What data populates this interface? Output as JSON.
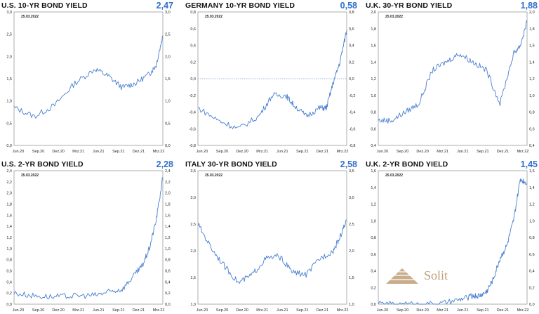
{
  "chart_data": [
    {
      "type": "line",
      "title": "U.S. 10-YR BOND YIELD",
      "last_value": "2,47",
      "date_label": "25.03.2022",
      "ylim": [
        0,
        3
      ],
      "yticks": [
        "0,0",
        "0,5",
        "1,0",
        "1,5",
        "2,0",
        "2,5",
        "3,0"
      ],
      "xticks": [
        "Jun.20",
        "Sep.20",
        "Dez.20",
        "Mrz.21",
        "Jun.21",
        "Sep.21",
        "Dez.21",
        "Mrz.22"
      ],
      "line_color": "#4a7fd0",
      "zero_line": false,
      "series": [
        {
          "x": [
            0,
            3,
            6,
            9,
            12,
            14,
            16,
            18,
            20,
            21,
            22
          ],
          "y": [
            0.85,
            0.65,
            0.9,
            1.4,
            1.72,
            1.55,
            1.3,
            1.4,
            1.6,
            1.8,
            2.47
          ]
        }
      ]
    },
    {
      "type": "line",
      "title": "GERMANY 10-YR BOND YIELD",
      "last_value": "0,58",
      "date_label": "25.03.2022",
      "ylim": [
        -0.8,
        0.8
      ],
      "yticks": [
        "-0,8",
        "-0,6",
        "-0,4",
        "-0,2",
        "0,0",
        "0,2",
        "0,4",
        "0,6",
        "0,8"
      ],
      "xticks": [
        "Jun.20",
        "Sep.20",
        "Dez.20",
        "Mrz.21",
        "Jun.21",
        "Sep.21",
        "Dez.21",
        "Mrz.22"
      ],
      "line_color": "#4a7fd0",
      "zero_line": true,
      "series": [
        {
          "x": [
            0,
            3,
            6,
            9,
            11,
            13,
            14,
            16,
            18,
            19,
            20,
            21,
            22
          ],
          "y": [
            -0.35,
            -0.5,
            -0.6,
            -0.45,
            -0.2,
            -0.2,
            -0.3,
            -0.45,
            -0.35,
            -0.35,
            -0.05,
            0.2,
            0.58
          ]
        }
      ]
    },
    {
      "type": "line",
      "title": "U.K. 30-YR BOND YIELD",
      "last_value": "1,88",
      "date_label": "25.03.2022",
      "ylim": [
        0.4,
        2.0
      ],
      "yticks": [
        "0,4",
        "0,6",
        "0,8",
        "1,0",
        "1,2",
        "1,4",
        "1,6",
        "1,8",
        "2,0"
      ],
      "xticks": [
        "Jun.20",
        "Sep.20",
        "Dez.20",
        "Mrz.21",
        "Jun.21",
        "Sep.21",
        "Dez.21",
        "Mrz.22"
      ],
      "line_color": "#4a7fd0",
      "zero_line": false,
      "series": [
        {
          "x": [
            0,
            2,
            4,
            6,
            8,
            10,
            12,
            14,
            16,
            18,
            20,
            21,
            22
          ],
          "y": [
            0.7,
            0.7,
            0.8,
            0.9,
            1.3,
            1.4,
            1.5,
            1.4,
            1.3,
            0.9,
            1.5,
            1.6,
            1.88
          ]
        }
      ]
    },
    {
      "type": "line",
      "title": "U.S. 2-YR BOND YIELD",
      "last_value": "2,28",
      "date_label": "25.03.2022",
      "ylim": [
        0,
        2.4
      ],
      "yticks": [
        "0,0",
        "0,2",
        "0,4",
        "0,6",
        "0,8",
        "1,0",
        "1,2",
        "1,4",
        "1,6",
        "1,8",
        "2,0",
        "2,2",
        "2,4"
      ],
      "xticks": [
        "Jun.20",
        "Sep.20",
        "Dez.20",
        "Mrz.21",
        "Jun.21",
        "Sep.21",
        "Dez.21",
        "Mrz.22"
      ],
      "line_color": "#4a7fd0",
      "zero_line": false,
      "series": [
        {
          "x": [
            0,
            3,
            6,
            9,
            12,
            14,
            16,
            18,
            19,
            20,
            21,
            22
          ],
          "y": [
            0.2,
            0.15,
            0.13,
            0.15,
            0.16,
            0.22,
            0.27,
            0.55,
            0.7,
            1.0,
            1.5,
            2.28
          ]
        }
      ]
    },
    {
      "type": "line",
      "title": "ITALY 30-YR BOND YIELD",
      "last_value": "2,58",
      "date_label": "25.03.2022",
      "ylim": [
        1.0,
        3.5
      ],
      "yticks": [
        "1,0",
        "1,5",
        "2,0",
        "2,5",
        "3,0",
        "3,5"
      ],
      "xticks": [
        "Jun.20",
        "Sep.20",
        "Dez.20",
        "Mrz.21",
        "Jun.21",
        "Sep.21",
        "Dez.21",
        "Mrz.22"
      ],
      "line_color": "#4a7fd0",
      "zero_line": false,
      "series": [
        {
          "x": [
            0,
            2,
            4,
            6,
            8,
            10,
            12,
            14,
            16,
            18,
            20,
            21,
            22
          ],
          "y": [
            2.5,
            2.05,
            1.7,
            1.4,
            1.55,
            1.85,
            1.9,
            1.6,
            1.55,
            1.85,
            2.0,
            2.25,
            2.58
          ]
        }
      ]
    },
    {
      "type": "line",
      "title": "U.K. 2-YR BOND YIELD",
      "last_value": "1,45",
      "date_label": "25.03.2022",
      "ylim": [
        0,
        1.6
      ],
      "yticks": [
        "0,0",
        "0,2",
        "0,4",
        "0,6",
        "0,8",
        "1,0",
        "1,2",
        "1,4",
        "1,6"
      ],
      "xticks": [
        "Jun.20",
        "Sep.20",
        "Dez.20",
        "Mrz.21",
        "Jun.21",
        "Sep.21",
        "Dez.21",
        "Mrz.22"
      ],
      "line_color": "#4a7fd0",
      "zero_line": false,
      "series": [
        {
          "x": [
            0,
            3,
            6,
            9,
            12,
            14,
            15,
            16,
            17,
            18,
            19,
            20,
            21,
            22
          ],
          "y": [
            0.0,
            0.0,
            0.0,
            0.0,
            0.05,
            0.1,
            0.1,
            0.15,
            0.3,
            0.55,
            0.7,
            1.0,
            1.5,
            1.45
          ]
        }
      ]
    }
  ],
  "logo": {
    "name": "solit-logo",
    "text": "Solit"
  }
}
